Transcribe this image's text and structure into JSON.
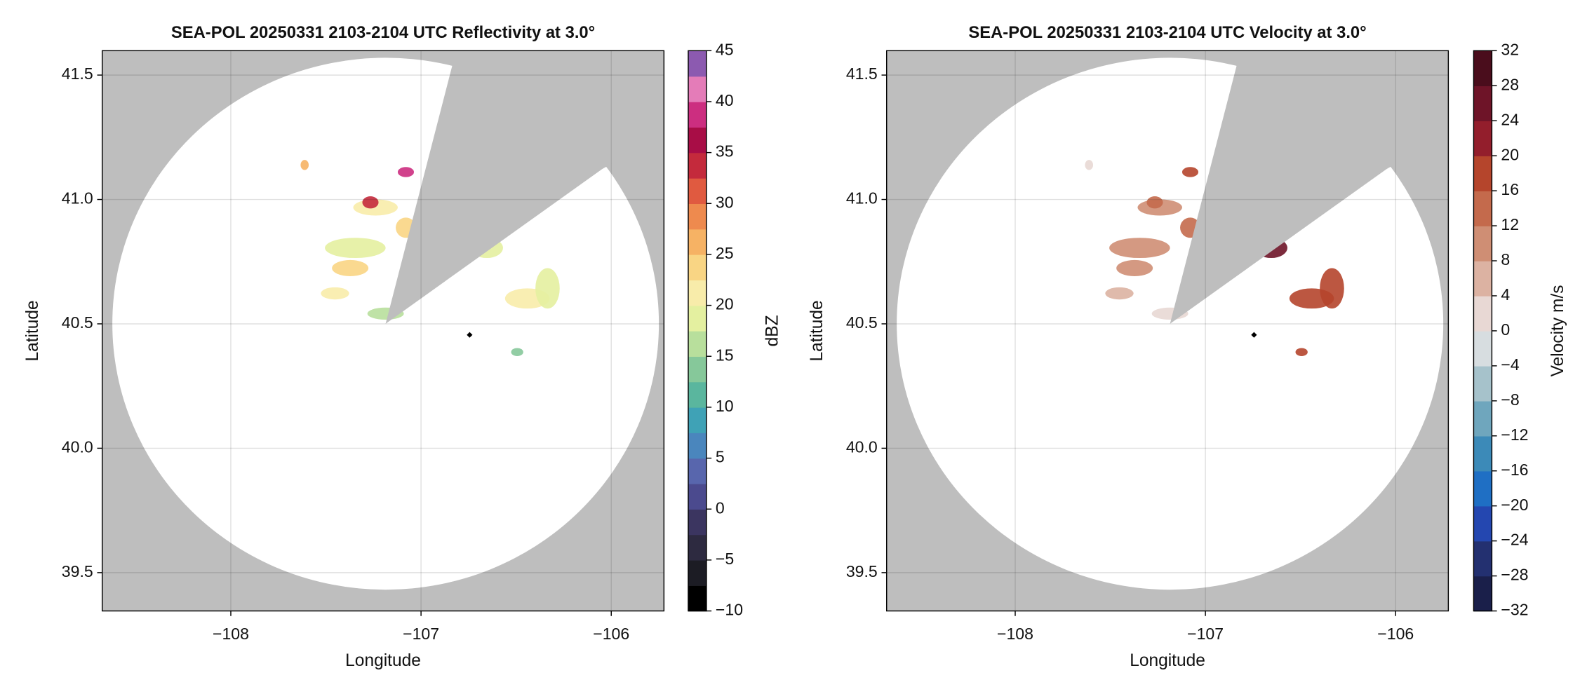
{
  "chart_data": [
    {
      "type": "radar-ppi",
      "title": "SEA-POL 20250331 2103-2104 UTC Reflectivity at 3.0°",
      "xlabel": "Longitude",
      "ylabel": "Latitude",
      "xlim": [
        -108.676,
        -105.723
      ],
      "ylim": [
        39.346,
        41.598
      ],
      "xticks": [
        {
          "value": -108,
          "label": "−108"
        },
        {
          "value": -107,
          "label": "−107"
        },
        {
          "value": -106,
          "label": "−106"
        }
      ],
      "yticks": [
        39.5,
        {
          "value": 40.0,
          "label": "40.0"
        },
        40.5,
        {
          "value": 41.0,
          "label": "41.0"
        },
        41.5
      ],
      "grid": true,
      "colorbar": {
        "label": "dBZ",
        "lim": [
          -10,
          45
        ],
        "ticks": [
          {
            "value": -10,
            "label": "−10"
          },
          {
            "value": -5,
            "label": "−5"
          },
          0,
          5,
          10,
          15,
          20,
          25,
          30,
          35,
          40,
          45
        ],
        "colors": [
          "#000000",
          "#1c1c24",
          "#2d2a40",
          "#3b3560",
          "#4b4a8e",
          "#5866ad",
          "#4a86bd",
          "#3fa2b6",
          "#5ab69e",
          "#86c89a",
          "#b8df9c",
          "#e4f0a0",
          "#f8ecaa",
          "#f9d584",
          "#f6b264",
          "#ee8a4e",
          "#e05a40",
          "#c42a3c",
          "#a80d46",
          "#cc2e80",
          "#e47cb8",
          "#8c5ab0"
        ]
      }
    },
    {
      "type": "radar-ppi",
      "title": "SEA-POL 20250331 2103-2104 UTC Velocity at 3.0°",
      "xlabel": "Longitude",
      "ylabel": "Latitude",
      "xlim": [
        -108.676,
        -105.723
      ],
      "ylim": [
        39.346,
        41.598
      ],
      "xticks": [
        {
          "value": -108,
          "label": "−108"
        },
        {
          "value": -107,
          "label": "−107"
        },
        {
          "value": -106,
          "label": "−106"
        }
      ],
      "yticks": [
        39.5,
        {
          "value": 40.0,
          "label": "40.0"
        },
        40.5,
        {
          "value": 41.0,
          "label": "41.0"
        },
        41.5
      ],
      "grid": true,
      "colorbar": {
        "label": "Velocity m/s",
        "lim": [
          -32,
          32
        ],
        "ticks": [
          {
            "value": -32,
            "label": "−32"
          },
          {
            "value": -28,
            "label": "−28"
          },
          {
            "value": -24,
            "label": "−24"
          },
          {
            "value": -20,
            "label": "−20"
          },
          {
            "value": -16,
            "label": "−16"
          },
          {
            "value": -12,
            "label": "−12"
          },
          {
            "value": -8,
            "label": "−8"
          },
          {
            "value": -4,
            "label": "−4"
          },
          0,
          4,
          8,
          12,
          16,
          20,
          24,
          28,
          32
        ],
        "colors": [
          "#1a1f4a",
          "#233070",
          "#2447b0",
          "#1f6fc4",
          "#3c8ab8",
          "#6fa6bd",
          "#a6c2cb",
          "#d7dde0",
          "#e8d8d4",
          "#dcb2a2",
          "#cf8e74",
          "#c46a4c",
          "#b5452c",
          "#931e2c",
          "#6e1428",
          "#4a0d1c"
        ]
      }
    }
  ]
}
